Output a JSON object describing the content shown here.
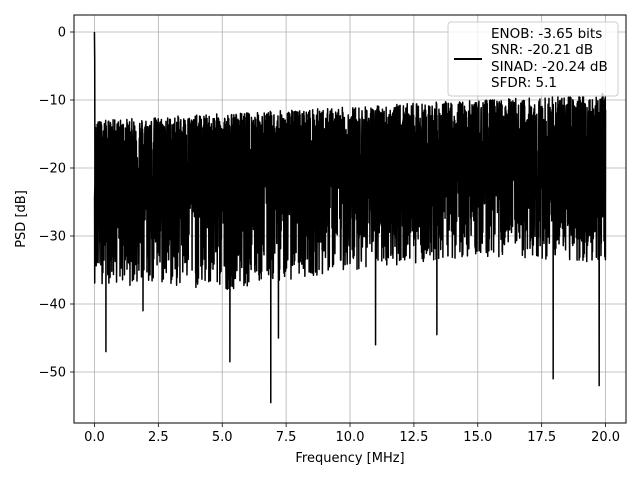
{
  "chart_data": {
    "type": "line",
    "xlabel": "Frequency [MHz]",
    "ylabel": "PSD [dB]",
    "xlim": [
      -0.8,
      20.8
    ],
    "ylim": [
      -57.5,
      2.5
    ],
    "xticks": [
      0.0,
      2.5,
      5.0,
      7.5,
      10.0,
      12.5,
      15.0,
      17.5,
      20.0
    ],
    "xtick_labels": [
      "0.0",
      "2.5",
      "5.0",
      "7.5",
      "10.0",
      "12.5",
      "15.0",
      "17.5",
      "20.0"
    ],
    "yticks": [
      0,
      -10,
      -20,
      -30,
      -40,
      -50
    ],
    "ytick_labels": [
      "0",
      "−10",
      "−20",
      "−30",
      "−40",
      "−50"
    ],
    "grid": true,
    "legend_placement": "upper-right",
    "line_color": "#000000",
    "series": [
      {
        "name": "ENOB: -3.65 bits\nSNR: -20.21 dB\nSINAD: -20.24 dB\nSFDR: 5.1",
        "legend_lines": [
          "ENOB: -3.65 bits",
          "SNR: -20.21 dB",
          "SINAD: -20.24 dB",
          "SFDR: 5.1"
        ],
        "x_range": [
          0,
          20
        ],
        "peak": {
          "x": 0.0,
          "y": 0
        },
        "noise_floor_envelope": {
          "upper_db": [
            -13,
            -12,
            -11,
            -10,
            -9
          ],
          "lower_db": [
            -37,
            -38,
            -35,
            -33,
            -34
          ],
          "median_db": -21
        },
        "notable_dips": [
          {
            "x": 0.45,
            "y": -47
          },
          {
            "x": 1.9,
            "y": -41
          },
          {
            "x": 5.3,
            "y": -48.5
          },
          {
            "x": 6.9,
            "y": -54.5
          },
          {
            "x": 7.2,
            "y": -45
          },
          {
            "x": 11.0,
            "y": -46
          },
          {
            "x": 13.4,
            "y": -44.5
          },
          {
            "x": 17.95,
            "y": -51
          },
          {
            "x": 19.75,
            "y": -52
          }
        ]
      }
    ]
  }
}
